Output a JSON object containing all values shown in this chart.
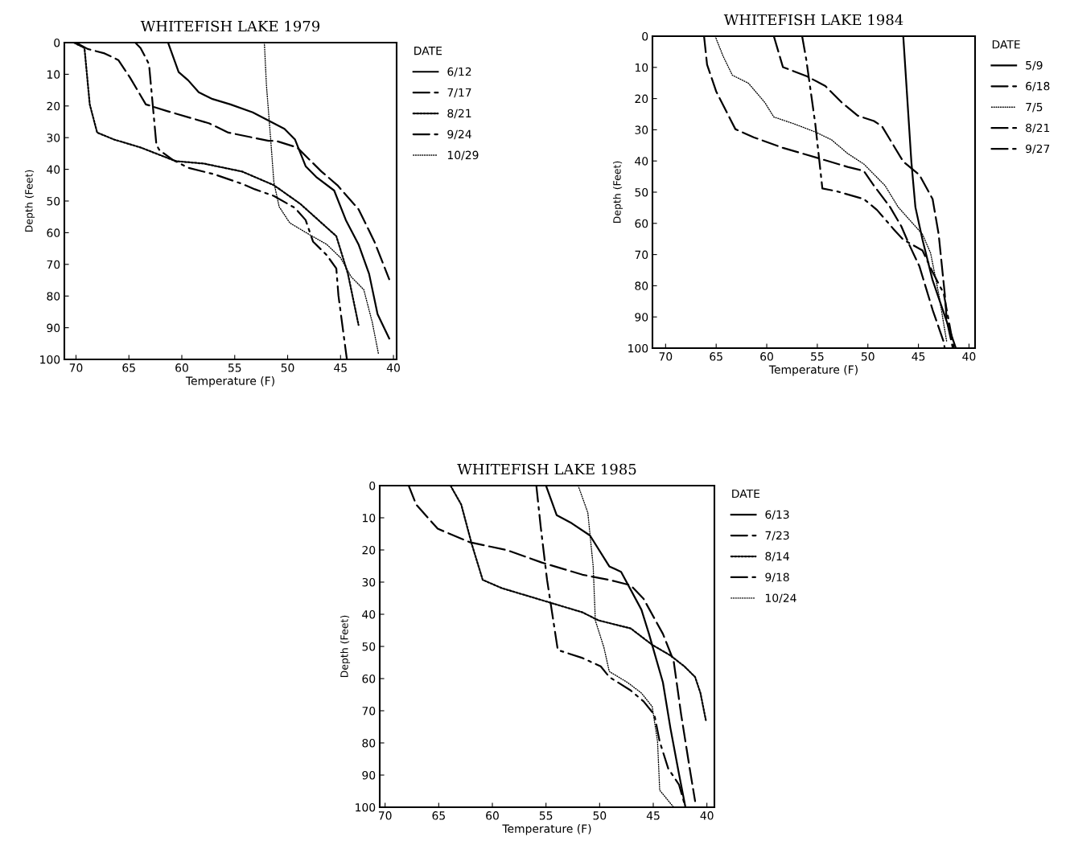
{
  "chart_data": [
    {
      "type": "line",
      "title": "WHITEFISH LAKE 1979",
      "xlabel": "Temperature (F)",
      "ylabel": "Depth (Feet)",
      "legend_title": "DATE",
      "legend": "right",
      "xlim": [
        71.1,
        39.7
      ],
      "ylim": [
        100,
        0
      ],
      "xticks": [
        70,
        65,
        60,
        55,
        50,
        45,
        40
      ],
      "yticks": [
        0,
        10,
        20,
        30,
        40,
        50,
        60,
        70,
        80,
        90,
        100
      ],
      "grid": false,
      "marker": "none",
      "series": [
        {
          "name": "6/12",
          "color": "#000000",
          "line_style": "solid",
          "x": [
            61.3,
            60.3,
            59.4,
            58.4,
            57.1,
            55.4,
            53.3,
            51.8,
            50.3,
            49.3,
            48.8,
            48.3,
            47.3,
            45.6,
            44.5,
            43.3,
            42.3,
            41.5,
            40.4
          ],
          "values": [
            0,
            9.3,
            11.9,
            15.7,
            17.8,
            19.5,
            22,
            24.6,
            27.2,
            30.6,
            34.8,
            39,
            42.4,
            46.7,
            56,
            63.7,
            73,
            85.7,
            93.4
          ]
        },
        {
          "name": "7/17",
          "color": "#000000",
          "line_style": "dashed",
          "x": [
            70.0,
            68.9,
            67.3,
            66.0,
            64.9,
            63.4,
            61.4,
            57.4,
            55.6,
            51.8,
            51.1,
            49.1,
            46.8,
            45.3,
            43.3,
            41.8,
            40.4
          ],
          "values": [
            0,
            2,
            3.4,
            5.5,
            11,
            19.5,
            21.6,
            25.5,
            28.4,
            31,
            31,
            33.1,
            40.7,
            45,
            52.6,
            62.8,
            74.7
          ]
        },
        {
          "name": "8/21",
          "color": "#000000",
          "line_style": "dotted",
          "x": [
            70.2,
            69.2,
            68.7,
            68.0,
            66.4,
            63.9,
            61.9,
            60.6,
            57.9,
            54.3,
            51.3,
            48.8,
            47.1,
            45.4,
            44.3,
            43.3
          ],
          "values": [
            0,
            1.7,
            19.5,
            28.4,
            30.6,
            33.1,
            35.7,
            37.4,
            38.2,
            40.7,
            45,
            50.9,
            56,
            61.1,
            73,
            89.1
          ]
        },
        {
          "name": "9/24",
          "color": "#000000",
          "line_style": "dashdot",
          "x": [
            64.4,
            63.9,
            63.1,
            62.4,
            62.1,
            60.9,
            59.4,
            56.9,
            54.3,
            53.1,
            51.3,
            49.3,
            48.3,
            47.6,
            46.3,
            45.4,
            45.2,
            44.4
          ],
          "values": [
            0,
            1.7,
            6.8,
            32.3,
            34,
            36.9,
            39.5,
            41.6,
            44.6,
            46.3,
            48.4,
            52.2,
            56,
            62.8,
            67.1,
            71.3,
            79.8,
            100
          ]
        },
        {
          "name": "10/29",
          "color": "#000000",
          "line_style": "finedotted",
          "x": [
            52.2,
            52.0,
            51.6,
            51.3,
            50.8,
            49.8,
            48.1,
            46.3,
            45.0,
            44.0,
            42.8,
            42.0,
            41.4
          ],
          "values": [
            0,
            13.6,
            30.6,
            44.1,
            51.8,
            56.9,
            60.3,
            63.7,
            67.9,
            73.9,
            78,
            88.3,
            98.5
          ]
        }
      ]
    },
    {
      "type": "line",
      "title": "WHITEFISH LAKE 1984",
      "xlabel": "Temperature (F)",
      "ylabel": "Depth (Feet)",
      "legend_title": "DATE",
      "legend": "right",
      "xlim": [
        71.3,
        39.4
      ],
      "ylim": [
        100,
        0
      ],
      "xticks": [
        70,
        65,
        60,
        55,
        50,
        45,
        40
      ],
      "yticks": [
        0,
        10,
        20,
        30,
        40,
        50,
        60,
        70,
        80,
        90,
        100
      ],
      "grid": false,
      "marker": "none",
      "series": [
        {
          "name": "5/9",
          "color": "#000000",
          "line_style": "solid",
          "x": [
            46.5,
            45.7,
            45.3,
            44.6,
            43.6,
            41.3
          ],
          "values": [
            0,
            40.2,
            54.8,
            65.2,
            78.2,
            100
          ]
        },
        {
          "name": "6/18",
          "color": "#000000",
          "line_style": "dashed",
          "x": [
            59.3,
            58.4,
            56.0,
            54.2,
            52.6,
            51.0,
            49.4,
            48.6,
            46.5,
            44.9,
            43.6,
            43.0,
            42.4,
            42.2,
            41.6
          ],
          "values": [
            0,
            9.9,
            12.9,
            16,
            21.2,
            25.5,
            27.2,
            28.9,
            40.2,
            44.5,
            52.2,
            63.5,
            82.5,
            91.1,
            100
          ]
        },
        {
          "name": "7/5",
          "color": "#000000",
          "line_style": "finedotted",
          "x": [
            65.1,
            64.3,
            63.4,
            61.8,
            60.2,
            59.3,
            57.3,
            55.2,
            53.6,
            52.0,
            50.4,
            48.3,
            47.0,
            44.6,
            43.8,
            43.0,
            42.2
          ],
          "values": [
            0,
            6.5,
            12.5,
            15.1,
            21.2,
            25.9,
            28.1,
            30.7,
            33.2,
            37.6,
            41,
            47.9,
            54.8,
            63.5,
            69.5,
            82.5,
            98
          ]
        },
        {
          "name": "8/21",
          "color": "#000000",
          "line_style": "dashed",
          "x": [
            66.2,
            65.9,
            65.0,
            63.1,
            61.3,
            58.4,
            54.7,
            52.0,
            50.4,
            49.4,
            47.8,
            46.7,
            45.9,
            44.9,
            43.6,
            42.5,
            42.4
          ],
          "values": [
            0,
            9.1,
            17.7,
            29.8,
            32.4,
            35.8,
            39.3,
            41.9,
            43.2,
            47.9,
            54.8,
            60.9,
            66.9,
            73.8,
            87.7,
            98,
            100
          ]
        },
        {
          "name": "9/27",
          "color": "#000000",
          "line_style": "dashdot",
          "x": [
            56.5,
            56.1,
            55.2,
            54.5,
            53.1,
            50.4,
            49.1,
            47.5,
            46.5,
            44.6,
            43.6,
            42.5,
            41.5
          ],
          "values": [
            0,
            7.3,
            28.1,
            48.8,
            49.7,
            52.2,
            55.7,
            61.7,
            65.2,
            68.7,
            75.6,
            82.5,
            100
          ]
        }
      ]
    },
    {
      "type": "line",
      "title": "WHITEFISH LAKE 1985",
      "xlabel": "Temperature (F)",
      "ylabel": "Depth (Feet)",
      "legend_title": "DATE",
      "legend": "right",
      "xlim": [
        70.5,
        39.3
      ],
      "ylim": [
        100,
        0
      ],
      "xticks": [
        70,
        65,
        60,
        55,
        50,
        45,
        40
      ],
      "yticks": [
        0,
        10,
        20,
        30,
        40,
        50,
        60,
        70,
        80,
        90,
        100
      ],
      "grid": false,
      "marker": "none",
      "series": [
        {
          "name": "6/13",
          "color": "#000000",
          "line_style": "solid",
          "x": [
            55.0,
            54.0,
            52.6,
            50.9,
            49.1,
            48.0,
            46.1,
            45.4,
            44.1,
            43.4,
            42.6,
            42.0
          ],
          "values": [
            0,
            9.2,
            11.7,
            15.5,
            25.1,
            26.8,
            38.6,
            46.1,
            61.2,
            75.4,
            89.7,
            100
          ]
        },
        {
          "name": "7/23",
          "color": "#000000",
          "line_style": "dashed",
          "x": [
            67.8,
            67.1,
            65.1,
            62.1,
            58.6,
            55.4,
            51.6,
            49.1,
            47.1,
            45.9,
            44.1,
            43.1,
            42.4,
            41.6,
            41.1
          ],
          "values": [
            0,
            5.9,
            13.4,
            17.6,
            20.1,
            23.9,
            27.7,
            29.3,
            31,
            35.2,
            46.1,
            54.5,
            71.2,
            88,
            98.1
          ]
        },
        {
          "name": "8/14",
          "color": "#000000",
          "line_style": "dotted",
          "x": [
            63.9,
            62.9,
            61.9,
            60.9,
            59.1,
            56.6,
            54.1,
            51.6,
            50.1,
            47.1,
            45.1,
            43.4,
            42.1,
            41.1,
            40.6,
            40.1
          ],
          "values": [
            0,
            5.9,
            18.4,
            29.3,
            31.9,
            34.4,
            36.9,
            39.4,
            41.9,
            44.4,
            49.5,
            52.8,
            56.2,
            59.5,
            64.5,
            72.9
          ]
        },
        {
          "name": "9/18",
          "color": "#000000",
          "line_style": "dashdot",
          "x": [
            55.9,
            55.5,
            54.9,
            53.9,
            51.6,
            49.9,
            49.1,
            47.1,
            45.9,
            44.9,
            44.4,
            43.6,
            42.6,
            42.0
          ],
          "values": [
            0,
            12.6,
            29.3,
            51.1,
            53.6,
            56.2,
            59.5,
            63.7,
            67.1,
            71.2,
            79.6,
            88,
            93,
            100
          ]
        },
        {
          "name": "10/24",
          "color": "#000000",
          "line_style": "finedotted",
          "x": [
            52.0,
            51.1,
            50.6,
            50.4,
            49.6,
            49.1,
            47.4,
            46.1,
            45.1,
            44.6,
            44.4,
            43.1
          ],
          "values": [
            0,
            8.4,
            25.1,
            41.9,
            50.3,
            57.8,
            61.2,
            64.5,
            68.7,
            79.6,
            94.7,
            100
          ]
        }
      ]
    }
  ]
}
